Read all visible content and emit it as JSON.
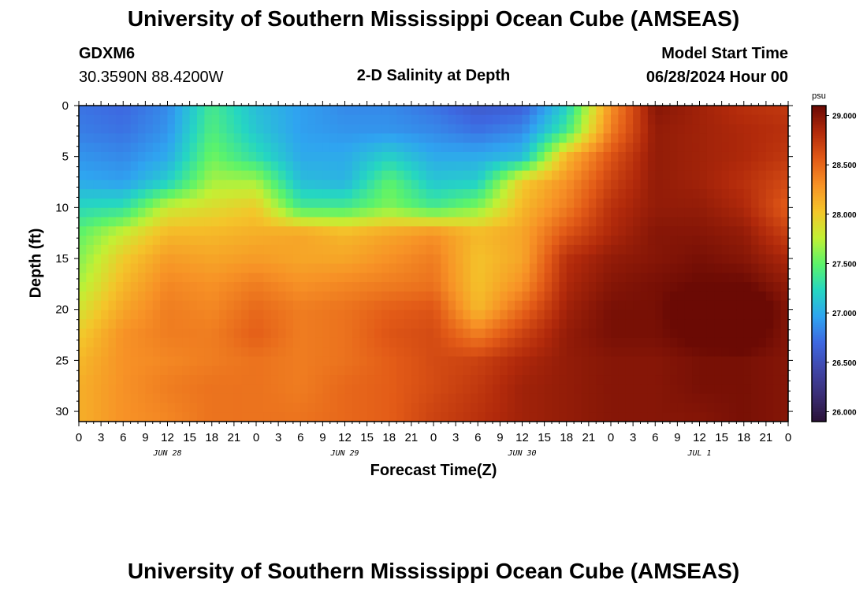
{
  "header": {
    "title": "University of Southern Mississippi Ocean Cube (AMSEAS)",
    "station_id": "GDXM6",
    "coordinates": "30.3590N  88.4200W",
    "plot_title": "2-D Salinity at Depth",
    "start_label": "Model Start Time",
    "start_value": "06/28/2024 Hour 00"
  },
  "footer": {
    "title": "University of Southern Mississippi Ocean Cube (AMSEAS)"
  },
  "chart_data": {
    "type": "heatmap",
    "title": "2-D Salinity at Depth",
    "xlabel": "Forecast Time(Z)",
    "ylabel": "Depth (ft)",
    "units": "psu",
    "x_hours": [
      0,
      3,
      6,
      9,
      12,
      15,
      18,
      21,
      24,
      27,
      30,
      33,
      36,
      39,
      42,
      45,
      48,
      51,
      54,
      57,
      60,
      63,
      66,
      69,
      72,
      75,
      78,
      81,
      84,
      87,
      90,
      93,
      96
    ],
    "xlim": [
      0,
      96
    ],
    "x_tick_labels": [
      "0",
      "3",
      "6",
      "9",
      "12",
      "15",
      "18",
      "21",
      "0",
      "3",
      "6",
      "9",
      "12",
      "15",
      "18",
      "21",
      "0",
      "3",
      "6",
      "9",
      "12",
      "15",
      "18",
      "21",
      "0",
      "3",
      "6",
      "9",
      "12",
      "15",
      "18",
      "21",
      "0"
    ],
    "date_labels": [
      {
        "label": "JUN 28",
        "hour": 12
      },
      {
        "label": "JUN 29",
        "hour": 36
      },
      {
        "label": "JUN 30",
        "hour": 60
      },
      {
        "label": "JUL 1",
        "hour": 84
      }
    ],
    "depths_ft": [
      0,
      2.5,
      5,
      7.5,
      10,
      12.5,
      15,
      17.5,
      20,
      22.5,
      25,
      27.5,
      31
    ],
    "ylim": [
      0,
      31
    ],
    "y_ticks": [
      0,
      5,
      10,
      15,
      20,
      25,
      30
    ],
    "salinity_psu": [
      [
        26.75,
        26.7,
        26.85,
        27.4,
        27.1,
        26.95,
        26.85,
        26.85,
        26.75,
        26.6,
        26.65,
        27.2,
        28.3,
        29.0,
        28.9,
        28.8,
        28.75
      ],
      [
        26.8,
        26.75,
        26.9,
        27.45,
        27.15,
        26.95,
        26.9,
        26.9,
        26.85,
        26.75,
        26.85,
        27.4,
        28.4,
        28.95,
        28.9,
        28.85,
        28.8
      ],
      [
        26.9,
        26.85,
        27.0,
        27.55,
        27.3,
        27.0,
        27.0,
        27.2,
        27.0,
        27.0,
        27.1,
        28.1,
        28.6,
        28.95,
        28.9,
        28.85,
        28.75
      ],
      [
        27.0,
        26.95,
        27.2,
        27.7,
        27.7,
        27.1,
        27.05,
        27.5,
        27.15,
        27.2,
        28.0,
        28.3,
        28.7,
        28.95,
        28.9,
        28.8,
        28.65
      ],
      [
        27.25,
        27.3,
        27.8,
        27.9,
        28.0,
        27.4,
        27.4,
        27.6,
        27.4,
        27.6,
        28.1,
        28.4,
        28.8,
        28.95,
        28.95,
        28.85,
        28.55
      ],
      [
        27.5,
        27.8,
        28.1,
        28.1,
        28.15,
        28.2,
        28.1,
        28.2,
        28.3,
        28.1,
        28.2,
        28.6,
        28.85,
        29.0,
        29.0,
        28.95,
        28.7
      ],
      [
        27.6,
        28.0,
        28.25,
        28.2,
        28.25,
        28.2,
        28.2,
        28.3,
        28.4,
        28.05,
        28.2,
        28.8,
        28.95,
        29.0,
        29.05,
        29.0,
        28.85
      ],
      [
        27.7,
        28.1,
        28.35,
        28.3,
        28.4,
        28.3,
        28.35,
        28.4,
        28.45,
        28.05,
        28.3,
        28.85,
        29.0,
        29.05,
        29.1,
        29.1,
        28.95
      ],
      [
        27.85,
        28.2,
        28.4,
        28.35,
        28.5,
        28.4,
        28.45,
        28.55,
        28.6,
        28.1,
        28.5,
        28.9,
        29.05,
        29.05,
        29.25,
        29.3,
        29.0
      ],
      [
        28.0,
        28.3,
        28.4,
        28.4,
        28.55,
        28.4,
        28.45,
        28.6,
        28.65,
        28.4,
        28.7,
        28.95,
        29.05,
        29.05,
        29.15,
        29.2,
        29.0
      ],
      [
        28.1,
        28.3,
        28.35,
        28.4,
        28.45,
        28.4,
        28.45,
        28.55,
        28.65,
        28.7,
        28.85,
        28.95,
        29.0,
        29.0,
        29.05,
        29.05,
        29.0
      ],
      [
        28.15,
        28.3,
        28.4,
        28.45,
        28.45,
        28.4,
        28.5,
        28.55,
        28.65,
        28.75,
        28.9,
        28.95,
        29.0,
        29.0,
        29.05,
        29.05,
        29.0
      ],
      [
        28.15,
        28.3,
        28.35,
        28.45,
        28.45,
        28.45,
        28.5,
        28.55,
        28.7,
        28.8,
        28.9,
        28.95,
        29.0,
        29.0,
        29.0,
        29.05,
        29.0
      ]
    ],
    "colorbar": {
      "unit_label": "psu",
      "range": [
        25.9,
        29.1
      ],
      "tick_values": [
        26.0,
        26.5,
        27.0,
        27.5,
        28.0,
        28.5,
        29.0
      ],
      "tick_labels": [
        "26.000",
        "26.500",
        "27.000",
        "27.500",
        "28.000",
        "28.500",
        "29.000"
      ],
      "colors": [
        "#2a1135",
        "#3a2d74",
        "#4046a8",
        "#3e67e0",
        "#2fa4f0",
        "#25d6c2",
        "#5cf36a",
        "#c2f034",
        "#f4c52a",
        "#f79226",
        "#e25a17",
        "#b22a0b",
        "#6b0a04"
      ]
    }
  }
}
